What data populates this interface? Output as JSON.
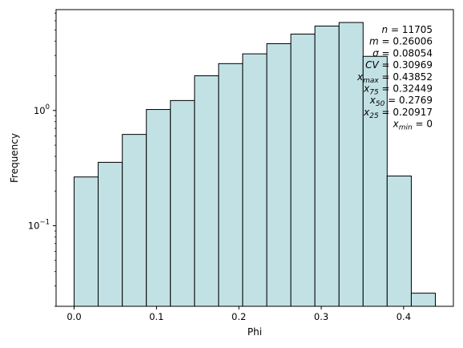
{
  "chart_data": {
    "type": "bar",
    "subtype": "histogram",
    "xlabel": "Phi",
    "ylabel": "Frequency",
    "y_scale": "log",
    "xlim": [
      -0.0219,
      0.4604
    ],
    "ylim": [
      0.02,
      7.5
    ],
    "x_ticks": [
      0.0,
      0.1,
      0.2,
      0.3,
      0.4
    ],
    "x_tick_labels": [
      "0.0",
      "0.1",
      "0.2",
      "0.3",
      "0.4"
    ],
    "y_major_ticks": [
      0.1,
      1
    ],
    "y_major_tick_labels": [
      "10",
      "10"
    ],
    "y_major_tick_exponents": [
      "−1",
      "0"
    ],
    "bar_color": "#c2e1e5",
    "edge_color": "#000000",
    "bins": [
      {
        "x0": 0.0,
        "x1": 0.0292,
        "value": 0.265
      },
      {
        "x0": 0.0292,
        "x1": 0.0585,
        "value": 0.355
      },
      {
        "x0": 0.0585,
        "x1": 0.0877,
        "value": 0.62
      },
      {
        "x0": 0.0877,
        "x1": 0.1169,
        "value": 1.02
      },
      {
        "x0": 0.1169,
        "x1": 0.1462,
        "value": 1.22
      },
      {
        "x0": 0.1462,
        "x1": 0.1754,
        "value": 2.0
      },
      {
        "x0": 0.1754,
        "x1": 0.2046,
        "value": 2.55
      },
      {
        "x0": 0.2046,
        "x1": 0.2339,
        "value": 3.1
      },
      {
        "x0": 0.2339,
        "x1": 0.2631,
        "value": 3.8
      },
      {
        "x0": 0.2631,
        "x1": 0.2923,
        "value": 4.6
      },
      {
        "x0": 0.2923,
        "x1": 0.3216,
        "value": 5.4
      },
      {
        "x0": 0.3216,
        "x1": 0.3508,
        "value": 5.8
      },
      {
        "x0": 0.3508,
        "x1": 0.38,
        "value": 2.95
      },
      {
        "x0": 0.38,
        "x1": 0.4093,
        "value": 0.27
      },
      {
        "x0": 0.4093,
        "x1": 0.4385,
        "value": 0.026
      }
    ],
    "stats": [
      {
        "sym": "n",
        "sub": "",
        "value": "11705"
      },
      {
        "sym": "m",
        "sub": "",
        "value": "0.26006"
      },
      {
        "sym": "σ",
        "sub": "",
        "value": "0.08054"
      },
      {
        "sym": "CV",
        "sub": "",
        "value": "0.30969"
      },
      {
        "sym": "x",
        "sub": "max",
        "value": "0.43852"
      },
      {
        "sym": "x",
        "sub": "75",
        "value": "0.32449"
      },
      {
        "sym": "x",
        "sub": "50",
        "value": "0.2769"
      },
      {
        "sym": "x",
        "sub": "25",
        "value": "0.20917"
      },
      {
        "sym": "x",
        "sub": "min",
        "value": "0"
      }
    ]
  }
}
